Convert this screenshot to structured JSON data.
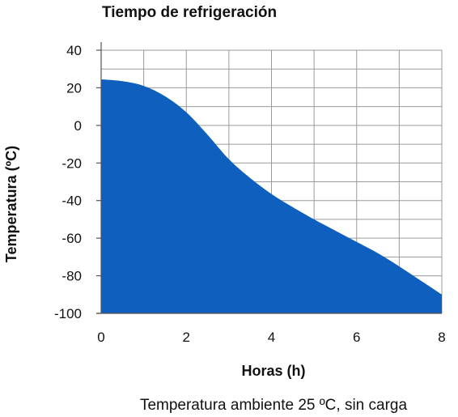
{
  "chart_data": {
    "type": "area",
    "title": "Tiempo de refrigeración",
    "xlabel": "Horas (h)",
    "ylabel": "Temperatura (ºC)",
    "note": "Temperatura ambiente 25 ºC, sin carga",
    "xlim": [
      0,
      8
    ],
    "ylim": [
      -100,
      40
    ],
    "x_ticks": [
      0,
      2,
      4,
      6,
      8
    ],
    "y_ticks": [
      40,
      20,
      0,
      -20,
      -40,
      -60,
      -80,
      -100
    ],
    "grid": true,
    "fill_color": "#0f5fbf",
    "series": [
      {
        "x": [
          0,
          0.5,
          1,
          1.5,
          2,
          2.5,
          3,
          3.5,
          4,
          4.5,
          5,
          5.5,
          6,
          6.5,
          7,
          7.5,
          8
        ],
        "y": [
          24.5,
          23.5,
          21,
          15.5,
          7,
          -5,
          -18,
          -28,
          -36.5,
          -43.5,
          -50,
          -56,
          -62,
          -68,
          -75,
          -82.5,
          -90
        ]
      }
    ]
  }
}
